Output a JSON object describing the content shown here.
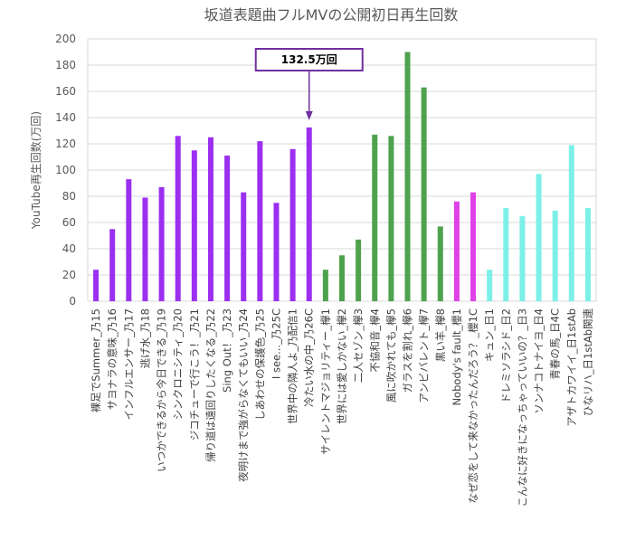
{
  "chart_data": {
    "type": "bar",
    "title": "坂道表題曲フルMVの公開初日再生回数",
    "ylabel": "YouTube再生回数(万回)",
    "xlabel": "",
    "ylim": [
      0,
      200
    ],
    "yticks": [
      0,
      20,
      40,
      60,
      80,
      100,
      120,
      140,
      160,
      180,
      200
    ],
    "grid": true,
    "legend": "none",
    "categories": [
      "裸足でSummer_乃15",
      "サヨナラの意味_乃16",
      "インフルエンサー_乃17",
      "逃げ水_乃18",
      "いつかできるから今日できる_乃19",
      "シンクロニシティ_乃20",
      "ジコチューで行こう！_乃21",
      "帰り道は遠回りしたくなる_乃22",
      "Sing Out！_乃23",
      "夜明けまで強がらなくてもいい_乃24",
      "しあわせの保護色_乃25",
      "I see..._乃25C",
      "世界中の隣人よ_乃配信1",
      "冷たい水の中_乃26C",
      "サイレントマジョリティー_欅1",
      "世界には愛しかない_欅2",
      "二人セゾン_欅3",
      "不協和音_欅4",
      "風に吹かれても_欅5",
      "ガラスを割れ_欅6",
      "アンビバレント_欅7",
      "黒い羊_欅8",
      "Nobody's fault_櫻1",
      "なぜ恋をして来なかったんだろう？_櫻1C",
      "キュン_日1",
      "ドレミソラシド_日2",
      "こんなに好きになっちゃっていいの？_日3",
      "ソンナコトナイヨ_日4",
      "青春の馬_日4C",
      "アザトカワイイ_日1stAb",
      "ひなリハ_日1stAb関連"
    ],
    "values": [
      24,
      55,
      93,
      79,
      87,
      126,
      115,
      125,
      111,
      83,
      122,
      75,
      116,
      132.5,
      24,
      35,
      47,
      127,
      126,
      190,
      163,
      57,
      76,
      83,
      24,
      71,
      65,
      97,
      69,
      119,
      71
    ],
    "groups": [
      "乃",
      "乃",
      "乃",
      "乃",
      "乃",
      "乃",
      "乃",
      "乃",
      "乃",
      "乃",
      "乃",
      "乃",
      "乃",
      "乃",
      "欅",
      "欅",
      "欅",
      "欅",
      "欅",
      "欅",
      "欅",
      "欅",
      "櫻",
      "櫻",
      "日",
      "日",
      "日",
      "日",
      "日",
      "日",
      "日"
    ],
    "group_colors": {
      "乃": "#9b30f0",
      "欅": "#4ea24e",
      "櫻": "#e040e8",
      "日": "#7cf0e8"
    },
    "annotation": {
      "text": "132.5万回",
      "target_index": 13
    }
  }
}
